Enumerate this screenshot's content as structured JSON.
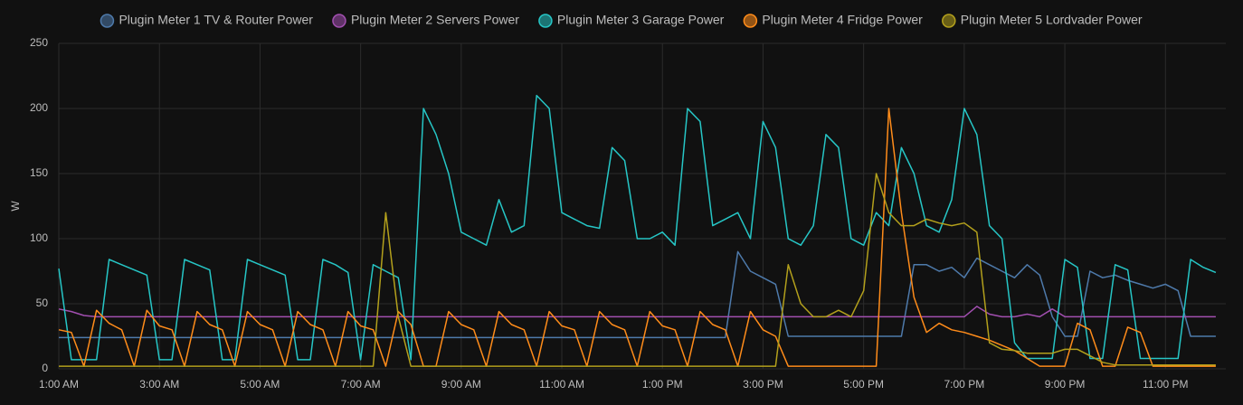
{
  "chart_data": {
    "type": "line",
    "ylabel": "W",
    "x": [
      1,
      1.25,
      1.5,
      1.75,
      2,
      2.25,
      2.5,
      2.75,
      3,
      3.25,
      3.5,
      3.75,
      4,
      4.25,
      4.5,
      4.75,
      5,
      5.25,
      5.5,
      5.75,
      6,
      6.25,
      6.5,
      6.75,
      7,
      7.25,
      7.5,
      7.75,
      8,
      8.25,
      8.5,
      8.75,
      9,
      9.25,
      9.5,
      9.75,
      10,
      10.25,
      10.5,
      10.75,
      11,
      11.25,
      11.5,
      11.75,
      12,
      12.25,
      12.5,
      12.75,
      13,
      13.25,
      13.5,
      13.75,
      14,
      14.25,
      14.5,
      14.75,
      15,
      15.25,
      15.5,
      15.75,
      16,
      16.25,
      16.5,
      16.75,
      17,
      17.25,
      17.5,
      17.75,
      18,
      18.25,
      18.5,
      18.75,
      19,
      19.25,
      19.5,
      19.75,
      20,
      20.25,
      20.5,
      20.75,
      21,
      21.25,
      21.5,
      21.75,
      22,
      22.25,
      22.5,
      22.75,
      23,
      23.25,
      23.5,
      23.75,
      24
    ],
    "xlim": [
      1,
      24.2
    ],
    "xticks": [
      {
        "value": 1,
        "label": "1:00 AM"
      },
      {
        "value": 3,
        "label": "3:00 AM"
      },
      {
        "value": 5,
        "label": "5:00 AM"
      },
      {
        "value": 7,
        "label": "7:00 AM"
      },
      {
        "value": 9,
        "label": "9:00 AM"
      },
      {
        "value": 11,
        "label": "11:00 AM"
      },
      {
        "value": 13,
        "label": "1:00 PM"
      },
      {
        "value": 15,
        "label": "3:00 PM"
      },
      {
        "value": 17,
        "label": "5:00 PM"
      },
      {
        "value": 19,
        "label": "7:00 PM"
      },
      {
        "value": 21,
        "label": "9:00 PM"
      },
      {
        "value": 23,
        "label": "11:00 PM"
      }
    ],
    "ylim": [
      0,
      250
    ],
    "yticks": [
      0,
      50,
      100,
      150,
      200,
      250
    ],
    "grid": true,
    "legend": "top",
    "series": [
      {
        "name": "Plugin Meter 1 TV & Router Power",
        "color": "#4e7aab",
        "values": [
          24,
          24,
          24,
          24,
          24,
          24,
          24,
          24,
          24,
          24,
          24,
          24,
          24,
          24,
          24,
          24,
          24,
          24,
          24,
          24,
          24,
          24,
          24,
          24,
          24,
          24,
          24,
          24,
          24,
          24,
          24,
          24,
          24,
          24,
          24,
          24,
          24,
          24,
          24,
          24,
          24,
          24,
          24,
          24,
          24,
          24,
          24,
          24,
          24,
          24,
          24,
          24,
          24,
          24,
          90,
          75,
          70,
          65,
          25,
          25,
          25,
          25,
          25,
          25,
          25,
          25,
          25,
          25,
          80,
          80,
          75,
          78,
          70,
          85,
          80,
          75,
          70,
          80,
          72,
          40,
          25,
          25,
          75,
          70,
          72,
          68,
          65,
          62,
          65,
          60,
          25,
          25,
          25
        ]
      },
      {
        "name": "Plugin Meter 2 Servers Power",
        "color": "#a24fb0",
        "values": [
          46,
          44,
          41,
          40,
          40,
          40,
          40,
          40,
          40,
          40,
          40,
          40,
          40,
          40,
          40,
          40,
          40,
          40,
          40,
          40,
          40,
          40,
          40,
          40,
          40,
          40,
          40,
          40,
          40,
          40,
          40,
          40,
          40,
          40,
          40,
          40,
          40,
          40,
          40,
          40,
          40,
          40,
          40,
          40,
          40,
          40,
          40,
          40,
          40,
          40,
          40,
          40,
          40,
          40,
          40,
          40,
          40,
          40,
          40,
          40,
          40,
          40,
          40,
          40,
          40,
          40,
          40,
          40,
          40,
          40,
          40,
          40,
          40,
          48,
          42,
          40,
          40,
          42,
          40,
          46,
          40,
          40,
          40,
          40,
          40,
          40,
          40,
          40,
          40,
          40,
          40,
          40,
          40
        ]
      },
      {
        "name": "Plugin Meter 3 Garage Power",
        "color": "#26c6c6",
        "values": [
          77,
          7,
          7,
          7,
          84,
          80,
          76,
          72,
          7,
          7,
          84,
          80,
          76,
          7,
          7,
          84,
          80,
          76,
          72,
          7,
          7,
          84,
          80,
          74,
          7,
          80,
          75,
          70,
          7,
          200,
          180,
          150,
          105,
          100,
          95,
          130,
          105,
          110,
          210,
          200,
          120,
          115,
          110,
          108,
          170,
          160,
          100,
          100,
          105,
          95,
          200,
          190,
          110,
          115,
          120,
          100,
          190,
          170,
          100,
          95,
          110,
          180,
          170,
          100,
          95,
          120,
          110,
          170,
          150,
          110,
          105,
          130,
          200,
          180,
          110,
          100,
          20,
          8,
          8,
          8,
          84,
          78,
          8,
          8,
          80,
          76,
          8,
          8,
          8,
          8,
          84,
          78,
          74
        ]
      },
      {
        "name": "Plugin Meter 4 Fridge Power",
        "color": "#ff8c1a",
        "values": [
          30,
          28,
          2,
          45,
          35,
          30,
          2,
          45,
          33,
          30,
          2,
          44,
          34,
          30,
          2,
          44,
          34,
          30,
          2,
          44,
          34,
          30,
          2,
          44,
          33,
          30,
          2,
          44,
          34,
          2,
          2,
          44,
          34,
          30,
          2,
          44,
          34,
          30,
          2,
          44,
          33,
          30,
          2,
          44,
          34,
          30,
          2,
          44,
          33,
          30,
          2,
          44,
          34,
          30,
          2,
          44,
          30,
          25,
          2,
          2,
          2,
          2,
          2,
          2,
          2,
          2,
          200,
          120,
          55,
          28,
          35,
          30,
          28,
          25,
          22,
          18,
          14,
          8,
          2,
          2,
          2,
          35,
          30,
          2,
          2,
          32,
          28,
          2,
          2,
          2,
          2,
          2,
          2
        ]
      },
      {
        "name": "Plugin Meter 5 Lordvader Power",
        "color": "#b3a01c",
        "values": [
          2,
          2,
          2,
          2,
          2,
          2,
          2,
          2,
          2,
          2,
          2,
          2,
          2,
          2,
          2,
          2,
          2,
          2,
          2,
          2,
          2,
          2,
          2,
          2,
          2,
          2,
          120,
          40,
          2,
          2,
          2,
          2,
          2,
          2,
          2,
          2,
          2,
          2,
          2,
          2,
          2,
          2,
          2,
          2,
          2,
          2,
          2,
          2,
          2,
          2,
          2,
          2,
          2,
          2,
          2,
          2,
          2,
          2,
          80,
          50,
          40,
          40,
          45,
          40,
          60,
          150,
          120,
          110,
          110,
          115,
          112,
          110,
          112,
          105,
          20,
          15,
          14,
          12,
          12,
          12,
          15,
          15,
          10,
          5,
          3,
          3,
          3,
          3,
          3,
          3,
          3,
          3,
          3
        ]
      }
    ]
  }
}
